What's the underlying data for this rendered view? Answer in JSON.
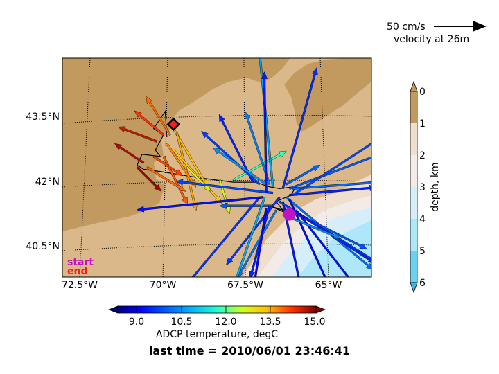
{
  "colors": {
    "land_dark": "#c29a5f",
    "land_light": "#dbb889",
    "shelf": "#f0dfce",
    "slope": "#f3ebe8",
    "deep": "#d6eef9",
    "abyss": "#aee6fa",
    "track": "#000000",
    "start_marker": "#c212c2",
    "end_marker": "#ff1a1a"
  },
  "chart_data": {
    "type": "map",
    "map": {
      "lon_ticks": [
        "72.5°W",
        "70°W",
        "67.5°W",
        "65°W"
      ],
      "lat_ticks": [
        "43.5°N",
        "42°N",
        "40.5°N"
      ],
      "start_label": "start",
      "end_label": "end"
    },
    "reference_vector": {
      "speed_label": "50 cm/s",
      "depth_label": "velocity at 26m"
    },
    "depth_colorbar": {
      "label": "depth, km",
      "ticks": [
        "0",
        "1",
        "2",
        "3",
        "4",
        "5",
        "6"
      ],
      "colors": [
        "#c29a5f",
        "#f0dfce",
        "#f3ebe8",
        "#d6eef9",
        "#aee6fa",
        "#6dd0f3"
      ]
    },
    "temperature_colorbar": {
      "label": "ADCP temperature, degC",
      "ticks": [
        "9.0",
        "10.5",
        "12.0",
        "13.5",
        "15.0"
      ],
      "range": [
        8.0,
        15.5
      ]
    },
    "last_time": "last time = 2010/06/01 23:46:41",
    "track_lonlat": [
      [
        -69.9,
        43.0
      ],
      [
        -69.95,
        43.6
      ],
      [
        -70.3,
        43.2
      ],
      [
        -70.0,
        43.05
      ],
      [
        -70.25,
        42.7
      ],
      [
        -70.1,
        42.55
      ],
      [
        -70.65,
        42.6
      ],
      [
        -70.8,
        42.35
      ],
      [
        -70.6,
        42.25
      ],
      [
        -70.1,
        42.2
      ],
      [
        -68.9,
        42.05
      ],
      [
        -67.9,
        41.95
      ],
      [
        -67.2,
        41.95
      ],
      [
        -66.85,
        41.85
      ],
      [
        -66.5,
        41.8
      ],
      [
        -66.0,
        41.85
      ],
      [
        -66.15,
        41.65
      ],
      [
        -66.6,
        41.5
      ],
      [
        -66.4,
        41.3
      ],
      [
        -66.8,
        41.4
      ],
      [
        -66.2,
        41.2
      ]
    ],
    "start_lonlat": [
      -66.2,
      41.2
    ],
    "end_lonlat": [
      -69.7,
      43.3
    ],
    "vectors": [
      {
        "lon": -69.7,
        "lat": 43.2,
        "u": 35,
        "v": -60,
        "t": 13.6
      },
      {
        "lon": -69.6,
        "lat": 43.1,
        "u": 20,
        "v": -80,
        "t": 13.8
      },
      {
        "lon": -69.8,
        "lat": 43.05,
        "u": -25,
        "v": 40,
        "t": 14.2
      },
      {
        "lon": -70.0,
        "lat": 43.05,
        "u": -30,
        "v": 25,
        "t": 14.6
      },
      {
        "lon": -70.2,
        "lat": 42.9,
        "u": -40,
        "v": 15,
        "t": 15.0
      },
      {
        "lon": -69.9,
        "lat": 42.85,
        "u": 30,
        "v": -45,
        "t": 14.0
      },
      {
        "lon": -69.7,
        "lat": 42.7,
        "u": 50,
        "v": -55,
        "t": 13.5
      },
      {
        "lon": -70.0,
        "lat": 42.55,
        "u": 25,
        "v": -50,
        "t": 14.3
      },
      {
        "lon": -70.3,
        "lat": 42.55,
        "u": 30,
        "v": -20,
        "t": 14.5
      },
      {
        "lon": -70.6,
        "lat": 42.4,
        "u": -30,
        "v": 20,
        "t": 15.2
      },
      {
        "lon": -70.5,
        "lat": 42.3,
        "u": 40,
        "v": -25,
        "t": 14.2
      },
      {
        "lon": -70.8,
        "lat": 42.3,
        "u": 25,
        "v": -25,
        "t": 15.3
      },
      {
        "lon": -69.3,
        "lat": 42.3,
        "u": 25,
        "v": -25,
        "t": 13.0
      },
      {
        "lon": -68.3,
        "lat": 42.0,
        "u": 10,
        "v": -35,
        "t": 12.8
      },
      {
        "lon": -67.9,
        "lat": 42.0,
        "u": 55,
        "v": 30,
        "t": 11.9
      },
      {
        "lon": -67.3,
        "lat": 41.95,
        "u": -35,
        "v": 70,
        "t": 9.2
      },
      {
        "lon": -67.1,
        "lat": 41.9,
        "u": -60,
        "v": 55,
        "t": 9.5
      },
      {
        "lon": -66.9,
        "lat": 41.9,
        "u": -55,
        "v": 38,
        "t": 10.4
      },
      {
        "lon": -66.8,
        "lat": 41.9,
        "u": -25,
        "v": 75,
        "t": 10.2
      },
      {
        "lon": -66.7,
        "lat": 41.85,
        "u": -15,
        "v": 150,
        "t": 10.6
      },
      {
        "lon": -66.4,
        "lat": 41.8,
        "u": 35,
        "v": 125,
        "t": 9.3
      },
      {
        "lon": -66.2,
        "lat": 41.8,
        "u": 105,
        "v": 40,
        "t": 9.8
      },
      {
        "lon": -66.1,
        "lat": 41.8,
        "u": 105,
        "v": 8,
        "t": 10.0
      },
      {
        "lon": -66.7,
        "lat": 41.7,
        "u": -100,
        "v": 12,
        "t": 9.6
      },
      {
        "lon": -66.5,
        "lat": 41.6,
        "u": -55,
        "v": -70,
        "t": 9.4
      },
      {
        "lon": -66.3,
        "lat": 41.6,
        "u": 90,
        "v": -75,
        "t": 10.0
      },
      {
        "lon": -66.2,
        "lat": 41.55,
        "u": 55,
        "v": -120,
        "t": 8.9
      },
      {
        "lon": -66.4,
        "lat": 41.5,
        "u": 25,
        "v": -120,
        "t": 9.1
      },
      {
        "lon": -66.7,
        "lat": 41.4,
        "u": -55,
        "v": 0,
        "t": 9.8
      },
      {
        "lon": -66.8,
        "lat": 41.4,
        "u": -20,
        "v": -75,
        "t": 9.2
      },
      {
        "lon": -66.6,
        "lat": 41.3,
        "u": -40,
        "v": -70,
        "t": 10.1
      },
      {
        "lon": -66.5,
        "lat": 41.5,
        "u": 120,
        "v": -75,
        "t": 9.5
      },
      {
        "lon": -66.2,
        "lat": 41.3,
        "u": 80,
        "v": -40,
        "t": 9.7
      },
      {
        "lon": -66.1,
        "lat": 41.3,
        "u": 85,
        "v": -55,
        "t": 9.2
      },
      {
        "lon": -66.0,
        "lat": 41.3,
        "u": 70,
        "v": -90,
        "t": 9.0
      },
      {
        "lon": -66.4,
        "lat": 41.2,
        "u": 60,
        "v": -25,
        "t": 10.3
      },
      {
        "lon": -66.9,
        "lat": 41.35,
        "u": -15,
        "v": -95,
        "t": 8.9
      },
      {
        "lon": -67.1,
        "lat": 41.6,
        "u": -75,
        "v": -90,
        "t": 9.4
      },
      {
        "lon": -66.95,
        "lat": 41.6,
        "u": -45,
        "v": -130,
        "t": 10.7
      },
      {
        "lon": -67.0,
        "lat": 41.6,
        "u": -130,
        "v": -13,
        "t": 9.0
      },
      {
        "lon": -66.9,
        "lat": 41.7,
        "u": -2,
        "v": 125,
        "t": 9.1
      },
      {
        "lon": -66.3,
        "lat": 41.9,
        "u": 35,
        "v": 20,
        "t": 9.9
      },
      {
        "lon": -66.2,
        "lat": 41.65,
        "u": 90,
        "v": 8,
        "t": 9.2
      },
      {
        "lon": -66.0,
        "lat": 41.7,
        "u": 130,
        "v": 85,
        "t": 9.6
      }
    ]
  }
}
